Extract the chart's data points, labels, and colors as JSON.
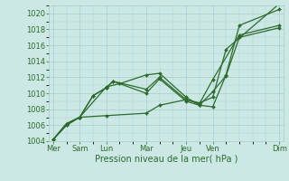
{
  "bg_color": "#cce8e4",
  "grid_color": "#aacccc",
  "line_color": "#2d6b2d",
  "xlabel": "Pression niveau de la mer( hPa )",
  "ylim": [
    1004,
    1021
  ],
  "xlim": [
    -0.3,
    17.3
  ],
  "yticks": [
    1004,
    1006,
    1008,
    1010,
    1012,
    1014,
    1016,
    1018,
    1020
  ],
  "x_tick_pos": [
    0,
    2,
    4,
    7,
    10,
    12,
    17
  ],
  "x_tick_lab": [
    "Mer",
    "Sam",
    "Lun",
    "Mar",
    "Jeu",
    "Ven",
    "Dim"
  ],
  "series": [
    {
      "x": [
        0,
        1,
        2,
        4,
        7,
        8,
        10,
        11,
        12,
        13,
        17
      ],
      "y": [
        1004.2,
        1006.0,
        1007.0,
        1007.2,
        1007.5,
        1008.5,
        1009.2,
        1008.8,
        1009.5,
        1015.5,
        1021.2
      ]
    },
    {
      "x": [
        0,
        1,
        2,
        4,
        5,
        7,
        8,
        10,
        11,
        12,
        13,
        14,
        17
      ],
      "y": [
        1004.2,
        1006.0,
        1007.0,
        1010.8,
        1011.2,
        1012.3,
        1012.5,
        1009.5,
        1008.5,
        1008.3,
        1012.3,
        1018.5,
        1020.5
      ]
    },
    {
      "x": [
        0,
        1,
        2,
        3,
        4,
        4.5,
        7,
        8,
        10,
        11,
        12,
        14,
        17
      ],
      "y": [
        1004.2,
        1006.2,
        1007.0,
        1009.7,
        1010.7,
        1011.5,
        1010.5,
        1012.0,
        1009.2,
        1008.7,
        1011.7,
        1017.3,
        1018.5
      ]
    },
    {
      "x": [
        0,
        1,
        2,
        3,
        4,
        4.5,
        7,
        8,
        10,
        11,
        12,
        13,
        14,
        17
      ],
      "y": [
        1004.2,
        1006.2,
        1007.0,
        1009.7,
        1010.7,
        1011.5,
        1010.0,
        1011.8,
        1009.0,
        1008.5,
        1010.2,
        1012.2,
        1017.0,
        1018.2
      ]
    }
  ],
  "tick_fontsize": 6.0,
  "xlabel_fontsize": 7.0,
  "linewidth": 0.9,
  "markersize": 2.0
}
